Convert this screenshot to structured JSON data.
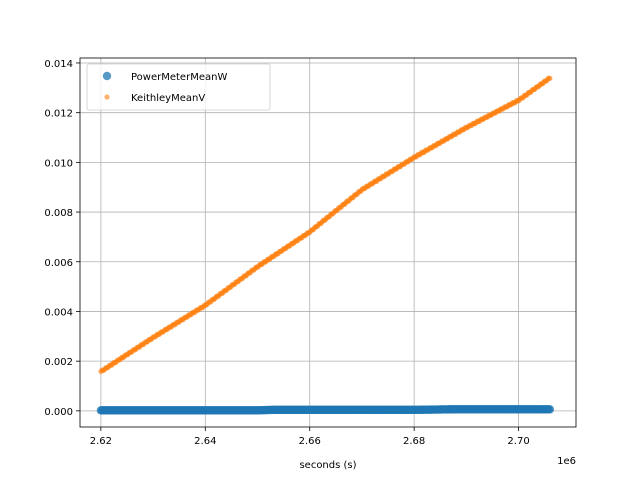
{
  "chart_data": {
    "type": "scatter",
    "xlabel": "seconds (s)",
    "ylabel": "",
    "x_offset_label": "1e6",
    "xlim": [
      2616000,
      2711000
    ],
    "ylim": [
      -0.00065,
      0.0142
    ],
    "grid": true,
    "legend_position": "top-left",
    "x_ticks": [
      2620000,
      2640000,
      2660000,
      2680000,
      2700000
    ],
    "x_tick_labels": [
      "2.62",
      "2.64",
      "2.66",
      "2.68",
      "2.70"
    ],
    "y_ticks": [
      0,
      0.002,
      0.004,
      0.006,
      0.008,
      0.01,
      0.012,
      0.014
    ],
    "y_tick_labels": [
      "0.000",
      "0.002",
      "0.004",
      "0.006",
      "0.008",
      "0.010",
      "0.012",
      "0.014"
    ],
    "series": [
      {
        "name": "PowerMeterMeanW",
        "color": "#1f77b4",
        "marker": "large-dot",
        "x": [
          2620000,
          2630000,
          2640000,
          2650000,
          2653000,
          2660000,
          2670000,
          2680000,
          2687000,
          2695000,
          2700000,
          2706000
        ],
        "y": [
          2e-05,
          2e-05,
          2e-05,
          2e-05,
          4e-05,
          4e-05,
          4e-05,
          4e-05,
          6e-05,
          6e-05,
          6e-05,
          6e-05
        ]
      },
      {
        "name": "KeithleyMeanV",
        "color": "#ff7f0e",
        "marker": "small-dot",
        "x": [
          2620000,
          2630000,
          2640000,
          2650000,
          2660000,
          2670000,
          2680000,
          2690000,
          2700000,
          2706000
        ],
        "y": [
          0.00158,
          0.00295,
          0.00425,
          0.0058,
          0.0072,
          0.0089,
          0.0102,
          0.0114,
          0.0125,
          0.0134
        ]
      }
    ]
  }
}
